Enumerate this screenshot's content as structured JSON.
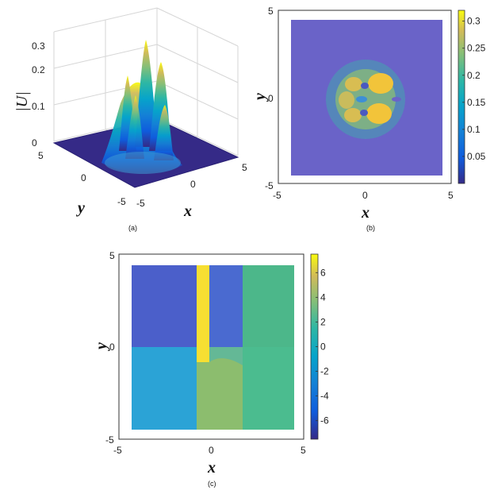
{
  "chart_data": [
    {
      "type": "surface3d",
      "caption": "(a)",
      "zlabel": "|U|",
      "xlabel": "x",
      "ylabel": "y",
      "xlim": [
        -5,
        5
      ],
      "ylim": [
        -5,
        5
      ],
      "zlim": [
        0,
        0.3
      ],
      "xticks": [
        "-5",
        "0",
        "5"
      ],
      "yticks": [
        "5",
        "0",
        "-5"
      ],
      "zticks": [
        "0",
        "0.1",
        "0.2",
        "0.3"
      ],
      "peak_value": 0.32
    },
    {
      "type": "heatmap",
      "caption": "(b)",
      "xlabel": "x",
      "ylabel": "y",
      "xlim": [
        -5,
        5
      ],
      "ylim": [
        -5,
        5
      ],
      "xticks": [
        "-5",
        "0",
        "5"
      ],
      "yticks": [
        "5",
        "0",
        "-5"
      ],
      "colorbar": {
        "min": 0,
        "max": 0.32,
        "ticks": [
          "0.3",
          "0.25",
          "0.2",
          "0.15",
          "0.1",
          "0.05"
        ]
      }
    },
    {
      "type": "heatmap",
      "caption": "(c)",
      "xlabel": "x",
      "ylabel": "y",
      "xlim": [
        -5,
        5
      ],
      "ylim": [
        -5,
        5
      ],
      "xticks": [
        "-5",
        "0",
        "5"
      ],
      "yticks": [
        "5",
        "0",
        "-5"
      ],
      "colorbar": {
        "min": -7.5,
        "max": 7.5,
        "ticks": [
          "6",
          "4",
          "2",
          "0",
          "-2",
          "-4",
          "-6"
        ]
      }
    }
  ]
}
